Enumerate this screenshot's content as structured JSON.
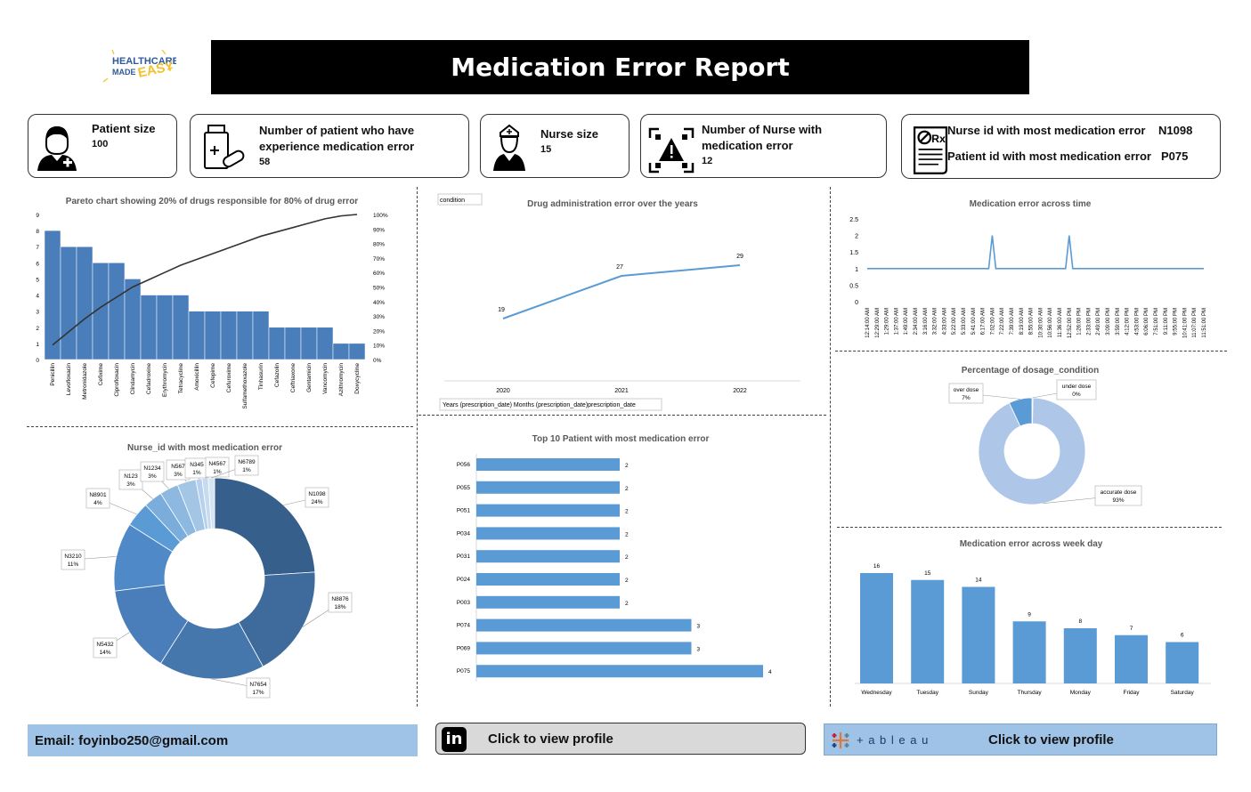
{
  "header": {
    "title": "Medication Error Report",
    "logo_text": [
      "HEALTHCARE",
      "MADE",
      "EASY"
    ]
  },
  "kpis": [
    {
      "label": "Patient size",
      "value": "100",
      "icon": "patient-icon"
    },
    {
      "label": "Number of patient who have experience medication error",
      "value": "58",
      "icon": "medicine-icon"
    },
    {
      "label": "Nurse size",
      "value": "15",
      "icon": "nurse-icon"
    },
    {
      "label": "Number of Nurse with medication error",
      "value": "12",
      "icon": "warning-icon"
    },
    {
      "nurse_label": "Nurse id with most medication error",
      "nurse_value": "N1098",
      "patient_label": "Patient id with most medication error",
      "patient_value": "P075",
      "icon": "prescription-icon"
    }
  ],
  "footer": {
    "email": "Email: foyinbo250@gmail.com",
    "linkedin_cta": "Click to view profile",
    "tableau_brand": "+ a b l e a u",
    "tableau_cta": "Click to view profile"
  },
  "colors": {
    "bar": "#4a7ebb",
    "bar_light": "#5b9bd5",
    "line": "#333333",
    "donut_light": "#aec7e8",
    "accent": "#9fc2e7"
  },
  "chart_data": [
    {
      "id": "pareto",
      "type": "bar",
      "title": "Pareto chart showing 20% of drugs responsible for 80% of drug error",
      "categories": [
        "Penicillin",
        "Levofloxacin",
        "Metronidazole",
        "Cefixime",
        "Ciprofloxacin",
        "Clindamycin",
        "Cefadroxine",
        "Erythromycin",
        "Tetracycline",
        "Amoxicillin",
        "Cefepime",
        "Cefuroxime",
        "Sulfamethoxazole",
        "Tinhasurin",
        "Cefazolin",
        "Ceftriaxone",
        "Gentamicin",
        "Vancomycin",
        "Azithromycin",
        "Doxycycline"
      ],
      "values": [
        8,
        7,
        7,
        6,
        6,
        5,
        4,
        4,
        4,
        3,
        3,
        3,
        3,
        3,
        2,
        2,
        2,
        2,
        1,
        1
      ],
      "ylim": [
        0,
        9
      ],
      "yticks": [
        "0",
        "1",
        "2",
        "3",
        "4",
        "5",
        "6",
        "7",
        "8",
        "9"
      ],
      "y2ticks": [
        "0%",
        "10%",
        "20%",
        "30%",
        "40%",
        "50%",
        "60%",
        "70%",
        "80%",
        "90%",
        "100%"
      ],
      "cumulative_pct": [
        10,
        19,
        28,
        36,
        43,
        50,
        55,
        60,
        65,
        69,
        73,
        77,
        81,
        85,
        88,
        91,
        94,
        97,
        99,
        100
      ]
    },
    {
      "id": "years",
      "type": "line",
      "title": "Drug administration error over the years",
      "filter_label": "condition",
      "field_label": "Years (prescription_date) Months (prescription_date)prescription_date",
      "x": [
        "2020",
        "2021",
        "2022"
      ],
      "values": [
        19,
        27,
        29
      ],
      "ylim": [
        10,
        35
      ]
    },
    {
      "id": "time",
      "type": "line",
      "title": "Medication error across time",
      "yticks": [
        "0",
        "0.5",
        "1",
        "1.5",
        "2",
        "2.5"
      ],
      "ylim": [
        0,
        2.5
      ],
      "x": [
        "12:14:00 AM",
        "12:29:00 AM",
        "1:29:00 AM",
        "1:37:00 AM",
        "1:49:00 AM",
        "2:34:00 AM",
        "3:16:00 AM",
        "3:32:00 AM",
        "4:33:00 AM",
        "5:22:00 AM",
        "5:33:00 AM",
        "5:41:00 AM",
        "6:17:00 AM",
        "7:02:00 AM",
        "7:22:00 AM",
        "7:39:00 AM",
        "8:19:00 AM",
        "8:55:00 AM",
        "10:30:00 AM",
        "10:56:00 AM",
        "11:36:00 AM",
        "12:52:00 PM",
        "1:26:00 PM",
        "2:33:00 PM",
        "2:49:00 PM",
        "3:09:00 PM",
        "3:59:00 PM",
        "4:12:00 PM",
        "4:53:00 PM",
        "6:06:00 PM",
        "7:51:00 PM",
        "9:11:00 PM",
        "9:55:00 PM",
        "10:41:00 PM",
        "11:07:00 PM",
        "11:51:00 PM"
      ],
      "values": [
        1,
        1,
        1,
        1,
        1,
        1,
        1,
        1,
        1,
        1,
        1,
        1,
        1,
        2,
        1,
        1,
        1,
        1,
        1,
        1,
        1,
        2,
        1,
        1,
        1,
        1,
        1,
        1,
        1,
        1,
        1,
        1,
        1,
        1,
        1,
        1
      ]
    },
    {
      "id": "dosage",
      "type": "pie",
      "title": "Percentage of dosage_condition",
      "slices": [
        {
          "name": "under dose",
          "pct": "0%",
          "value": 0.3,
          "color": "#5b9bd5"
        },
        {
          "name": "accurate dose",
          "pct": "93%",
          "value": 92.7,
          "color": "#aec7e8"
        },
        {
          "name": "over dose",
          "pct": "7%",
          "value": 7,
          "color": "#5b9bd5"
        }
      ]
    },
    {
      "id": "nurse",
      "type": "pie",
      "title": "Nurse_id with most medication error",
      "slices": [
        {
          "name": "N1098",
          "pct": "24%",
          "value": 24,
          "color": "#375f8c"
        },
        {
          "name": "N8876",
          "pct": "18%",
          "value": 18,
          "color": "#3f6b9c"
        },
        {
          "name": "N7654",
          "pct": "17%",
          "value": 17,
          "color": "#4577ad"
        },
        {
          "name": "N5432",
          "pct": "14%",
          "value": 14,
          "color": "#4a7ebb"
        },
        {
          "name": "N3210",
          "pct": "11%",
          "value": 11,
          "color": "#5089c8"
        },
        {
          "name": "N8901",
          "pct": "4%",
          "value": 4,
          "color": "#5b9bd5"
        },
        {
          "name": "N123",
          "pct": "3%",
          "value": 3,
          "color": "#7aaddc"
        },
        {
          "name": "N1234",
          "pct": "3%",
          "value": 3,
          "color": "#8db8e0"
        },
        {
          "name": "N567",
          "pct": "3%",
          "value": 3,
          "color": "#a3c5e6"
        },
        {
          "name": "N345",
          "pct": "1%",
          "value": 1,
          "color": "#b7d1ec"
        },
        {
          "name": "N4567",
          "pct": "1%",
          "value": 1,
          "color": "#c6dbef"
        },
        {
          "name": "N6789",
          "pct": "1%",
          "value": 1,
          "color": "#d5e4f3"
        }
      ]
    },
    {
      "id": "patients",
      "type": "bar",
      "orientation": "horizontal",
      "title": "Top 10 Patient with most medication error",
      "categories": [
        "P056",
        "P055",
        "P051",
        "P034",
        "P031",
        "P024",
        "P003",
        "P074",
        "P069",
        "P075"
      ],
      "values": [
        2,
        2,
        2,
        2,
        2,
        2,
        2,
        3,
        3,
        4
      ]
    },
    {
      "id": "weekday",
      "type": "bar",
      "title": "Medication error across week day",
      "categories": [
        "Wednesday",
        "Tuesday",
        "Sunday",
        "Thursday",
        "Monday",
        "Friday",
        "Saturday"
      ],
      "values": [
        16,
        15,
        14,
        9,
        8,
        7,
        6
      ]
    }
  ]
}
